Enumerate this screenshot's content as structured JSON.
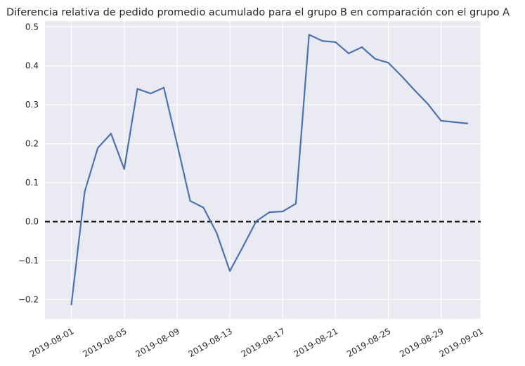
{
  "chart_data": {
    "type": "line",
    "title": "Diferencia relativa de pedido promedio acumulado para el grupo B en comparación con el grupo A",
    "xlabel": "",
    "ylabel": "",
    "x_axis_type": "date",
    "xlim": [
      "2019-07-30",
      "2019-09-01"
    ],
    "ylim": [
      -0.25,
      0.515
    ],
    "grid": true,
    "background": "#eaeaf2",
    "grid_color": "#ffffff",
    "x_ticks": [
      {
        "date": "2019-08-01",
        "label": "2019-08-01"
      },
      {
        "date": "2019-08-05",
        "label": "2019-08-05"
      },
      {
        "date": "2019-08-09",
        "label": "2019-08-09"
      },
      {
        "date": "2019-08-13",
        "label": "2019-08-13"
      },
      {
        "date": "2019-08-17",
        "label": "2019-08-17"
      },
      {
        "date": "2019-08-21",
        "label": "2019-08-21"
      },
      {
        "date": "2019-08-25",
        "label": "2019-08-25"
      },
      {
        "date": "2019-08-29",
        "label": "2019-08-29"
      },
      {
        "date": "2019-09-01",
        "label": "2019-09-01"
      }
    ],
    "y_ticks": [
      {
        "value": -0.2,
        "label": "−0.2"
      },
      {
        "value": -0.1,
        "label": "−0.1"
      },
      {
        "value": 0.0,
        "label": "0.0"
      },
      {
        "value": 0.1,
        "label": "0.1"
      },
      {
        "value": 0.2,
        "label": "0.2"
      },
      {
        "value": 0.3,
        "label": "0.3"
      },
      {
        "value": 0.4,
        "label": "0.4"
      },
      {
        "value": 0.5,
        "label": "0.5"
      }
    ],
    "reference_line": {
      "y": 0.0,
      "style": "dashed",
      "color": "#000000"
    },
    "series": [
      {
        "color": "#4c72b0",
        "points": [
          {
            "x": "2019-08-01",
            "y": -0.213
          },
          {
            "x": "2019-08-02",
            "y": 0.076
          },
          {
            "x": "2019-08-03",
            "y": 0.189
          },
          {
            "x": "2019-08-04",
            "y": 0.226
          },
          {
            "x": "2019-08-05",
            "y": 0.135
          },
          {
            "x": "2019-08-06",
            "y": 0.341
          },
          {
            "x": "2019-08-07",
            "y": 0.329
          },
          {
            "x": "2019-08-08",
            "y": 0.344
          },
          {
            "x": "2019-08-09",
            "y": 0.2
          },
          {
            "x": "2019-08-10",
            "y": 0.053
          },
          {
            "x": "2019-08-11",
            "y": 0.036
          },
          {
            "x": "2019-08-12",
            "y": -0.029
          },
          {
            "x": "2019-08-13",
            "y": -0.127
          },
          {
            "x": "2019-08-14",
            "y": -0.064
          },
          {
            "x": "2019-08-15",
            "y": 0.001
          },
          {
            "x": "2019-08-16",
            "y": 0.024
          },
          {
            "x": "2019-08-17",
            "y": 0.026
          },
          {
            "x": "2019-08-18",
            "y": 0.046
          },
          {
            "x": "2019-08-19",
            "y": 0.48
          },
          {
            "x": "2019-08-20",
            "y": 0.464
          },
          {
            "x": "2019-08-21",
            "y": 0.461
          },
          {
            "x": "2019-08-22",
            "y": 0.432
          },
          {
            "x": "2019-08-23",
            "y": 0.448
          },
          {
            "x": "2019-08-24",
            "y": 0.418
          },
          {
            "x": "2019-08-25",
            "y": 0.408
          },
          {
            "x": "2019-08-26",
            "y": 0.374
          },
          {
            "x": "2019-08-27",
            "y": 0.337
          },
          {
            "x": "2019-08-28",
            "y": 0.302
          },
          {
            "x": "2019-08-29",
            "y": 0.259
          },
          {
            "x": "2019-08-31",
            "y": 0.252
          }
        ]
      }
    ]
  }
}
